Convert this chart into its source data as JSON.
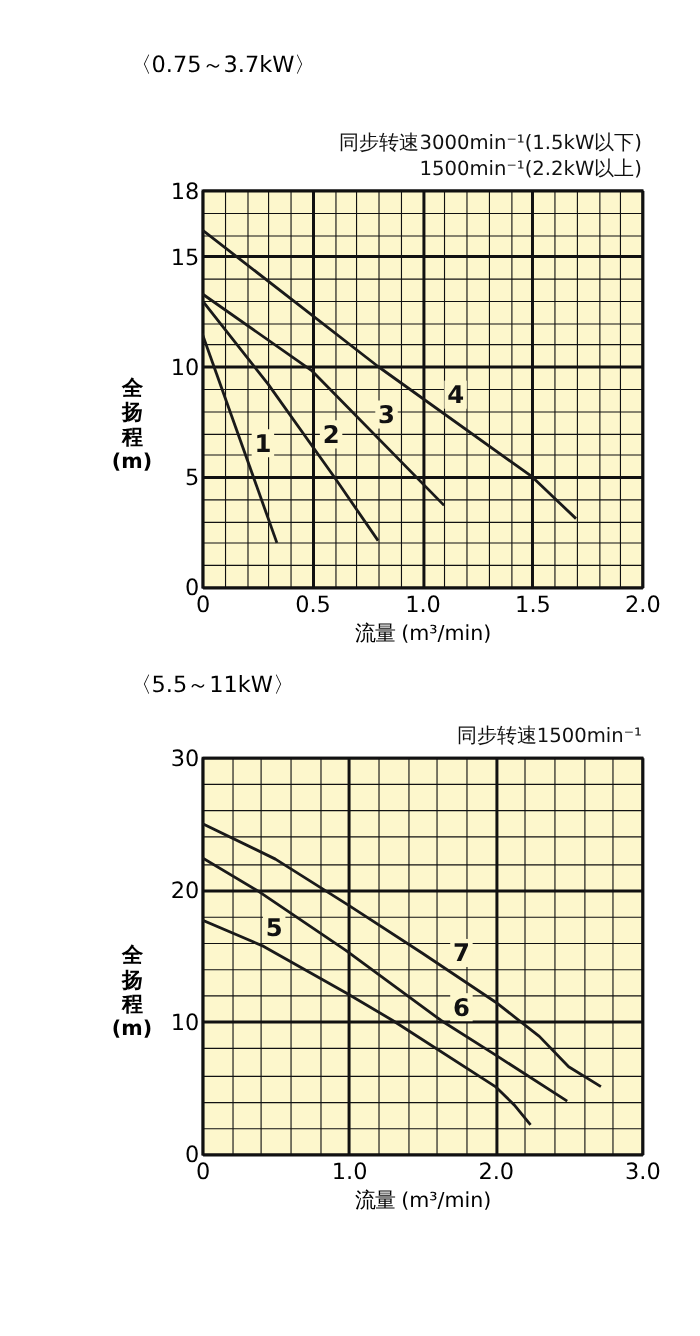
{
  "chart_data": [
    {
      "type": "line",
      "title": "〈0.75～3.7kW〉",
      "subtitle": [
        "同步转速3000min⁻¹(1.5kW以下)",
        "1500min⁻¹(2.2kW以上)"
      ],
      "xlabel": "流量 (m³/min)",
      "ylabel": "全扬程(m)",
      "xlim": [
        0,
        2
      ],
      "ylim": [
        0,
        18
      ],
      "xticks": [
        0,
        {
          "value": 0.1,
          "label": null
        },
        {
          "value": 0.2,
          "label": null
        },
        {
          "value": 0.3,
          "label": null
        },
        {
          "value": 0.4,
          "label": null
        },
        0.5,
        {
          "value": 0.6,
          "label": null
        },
        {
          "value": 0.7,
          "label": null
        },
        {
          "value": 0.8,
          "label": null
        },
        {
          "value": 0.9,
          "label": null
        },
        {
          "value": 1,
          "label": "1.0"
        },
        {
          "value": 1.1,
          "label": null
        },
        {
          "value": 1.2,
          "label": null
        },
        {
          "value": 1.3,
          "label": null
        },
        {
          "value": 1.4,
          "label": null
        },
        1.5,
        {
          "value": 1.6,
          "label": null
        },
        {
          "value": 1.7,
          "label": null
        },
        {
          "value": 1.8,
          "label": null
        },
        {
          "value": 1.9,
          "label": null
        },
        {
          "value": 2,
          "label": "2.0"
        }
      ],
      "yticks": [
        0,
        {
          "value": 1,
          "label": null
        },
        {
          "value": 2,
          "label": null
        },
        {
          "value": 3,
          "label": null
        },
        {
          "value": 4,
          "label": null
        },
        5,
        {
          "value": 6,
          "label": null
        },
        {
          "value": 7,
          "label": null
        },
        {
          "value": 8,
          "label": null
        },
        {
          "value": 9,
          "label": null
        },
        10,
        {
          "value": 11,
          "label": null
        },
        {
          "value": 12,
          "label": null
        },
        {
          "value": 13,
          "label": null
        },
        {
          "value": 14,
          "label": null
        },
        15,
        {
          "value": 16,
          "label": null
        },
        {
          "value": 17,
          "label": null
        },
        18
      ],
      "grid": true,
      "series": [
        {
          "color": "#1a1a1a",
          "x": [
            0,
            0.34
          ],
          "values": [
            11.5,
            2
          ]
        },
        {
          "color": "#1a1a1a",
          "x": [
            0,
            0.3,
            0.6,
            0.8
          ],
          "values": [
            13,
            9.2,
            5,
            2.1
          ]
        },
        {
          "color": "#1a1a1a",
          "x": [
            0,
            0.5,
            1.1
          ],
          "values": [
            13.3,
            9.8,
            3.7
          ]
        },
        {
          "color": "#1a1a1a",
          "x": [
            0,
            0.8,
            1.5,
            1.7
          ],
          "values": [
            16.2,
            10,
            5,
            3.1
          ]
        }
      ],
      "annotations": [
        {
          "text": "1",
          "x": 0.204,
          "y": 5.8
        },
        {
          "text": "2",
          "x": 0.514,
          "y": 6.2
        },
        {
          "text": "3",
          "x": 0.766,
          "y": 7.1
        },
        {
          "text": "4",
          "x": 1.08,
          "y": 8
        }
      ]
    },
    {
      "type": "line",
      "title": "〈5.5～11kW〉",
      "subtitle": [
        "同步转速1500min⁻¹"
      ],
      "xlabel": "流量 (m³/min)",
      "ylabel": "全扬程(m)",
      "xlim": [
        0,
        3
      ],
      "ylim": [
        0,
        30
      ],
      "xticks": [
        0,
        {
          "value": 0.2,
          "label": null
        },
        {
          "value": 0.4,
          "label": null
        },
        {
          "value": 0.6,
          "label": null
        },
        {
          "value": 0.8,
          "label": null
        },
        {
          "value": 1,
          "label": "1.0"
        },
        {
          "value": 1.2,
          "label": null
        },
        {
          "value": 1.4,
          "label": null
        },
        {
          "value": 1.6,
          "label": null
        },
        {
          "value": 1.8,
          "label": null
        },
        {
          "value": 2,
          "label": "2.0"
        },
        {
          "value": 2.2,
          "label": null
        },
        {
          "value": 2.4,
          "label": null
        },
        {
          "value": 2.6,
          "label": null
        },
        {
          "value": 2.8,
          "label": null
        },
        {
          "value": 3,
          "label": "3.0"
        }
      ],
      "yticks": [
        0,
        {
          "value": 2,
          "label": null
        },
        {
          "value": 4,
          "label": null
        },
        {
          "value": 6,
          "label": null
        },
        {
          "value": 8,
          "label": null
        },
        10,
        {
          "value": 12,
          "label": null
        },
        {
          "value": 14,
          "label": null
        },
        {
          "value": 16,
          "label": null
        },
        {
          "value": 18,
          "label": null
        },
        20,
        {
          "value": 22,
          "label": null
        },
        {
          "value": 24,
          "label": null
        },
        {
          "value": 26,
          "label": null
        },
        {
          "value": 28,
          "label": null
        },
        30
      ],
      "grid": true,
      "series": [
        {
          "color": "#1a1a1a",
          "x": [
            0,
            0.42,
            0.98,
            1.3,
            2.0,
            2.13,
            2.24
          ],
          "values": [
            17.7,
            15.7,
            12.2,
            10.1,
            5.1,
            3.7,
            2.2
          ]
        },
        {
          "color": "#1a1a1a",
          "x": [
            0,
            0.38,
            0.98,
            1.63,
            2.0,
            2.49
          ],
          "values": [
            22.4,
            19.9,
            15.4,
            10.1,
            7.5,
            4
          ]
        },
        {
          "color": "#1a1a1a",
          "x": [
            0,
            0.5,
            1,
            1.5,
            2,
            2.3,
            2.5,
            2.72
          ],
          "values": [
            25,
            22.3,
            18.8,
            15.2,
            11.5,
            8.9,
            6.6,
            5.1
          ]
        }
      ],
      "annotations": [
        {
          "text": "5",
          "x": 0.383,
          "y": 15.9
        },
        {
          "text": "6",
          "x": 1.66,
          "y": 9.9
        },
        {
          "text": "7",
          "x": 1.66,
          "y": 14
        }
      ]
    }
  ]
}
